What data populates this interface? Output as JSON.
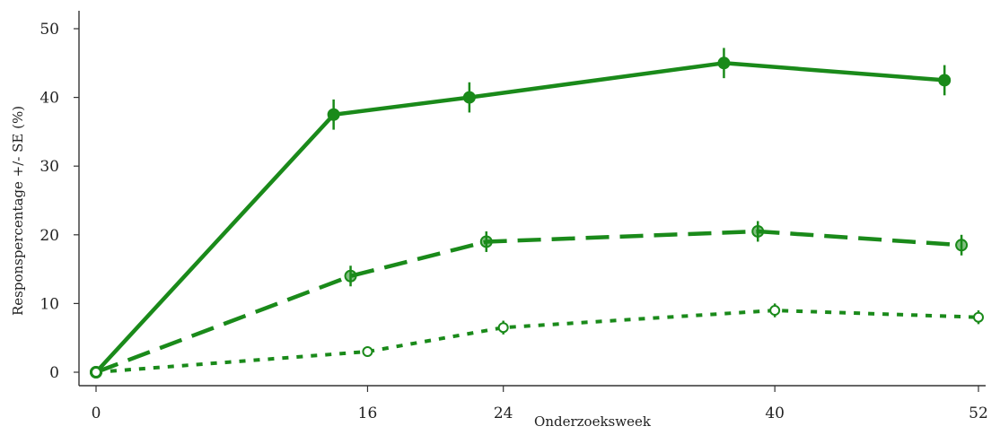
{
  "chart_data": {
    "type": "line",
    "xlabel": "Onderzoeksweek",
    "ylabel": "Responspercentage +/- SE (%)",
    "xlim": [
      0,
      52
    ],
    "ylim": [
      0,
      50
    ],
    "xticks": [
      0,
      16,
      24,
      40,
      52
    ],
    "yticks": [
      0,
      10,
      20,
      30,
      40,
      50
    ],
    "grid": false,
    "legend": "none",
    "series": [
      {
        "line_style": "solid",
        "marker": "filled",
        "color": "#1a8a1a",
        "x": [
          0,
          14,
          22,
          37,
          50
        ],
        "y": [
          0,
          37.5,
          40,
          45,
          42.5
        ],
        "se": [
          0,
          2.2,
          2.2,
          2.2,
          2.2
        ]
      },
      {
        "line_style": "dashed",
        "marker": "half-filled",
        "color": "#1a8a1a",
        "x": [
          0,
          15,
          23,
          39,
          51
        ],
        "y": [
          0,
          14,
          19,
          20.5,
          18.5
        ],
        "se": [
          0,
          1.5,
          1.5,
          1.5,
          1.5
        ]
      },
      {
        "line_style": "dotted",
        "marker": "open",
        "color": "#1a8a1a",
        "x": [
          0,
          16,
          24,
          40,
          52
        ],
        "y": [
          0,
          3,
          6.5,
          9,
          8
        ],
        "se": [
          0,
          0.6,
          1.0,
          1.0,
          1.0
        ]
      }
    ]
  }
}
